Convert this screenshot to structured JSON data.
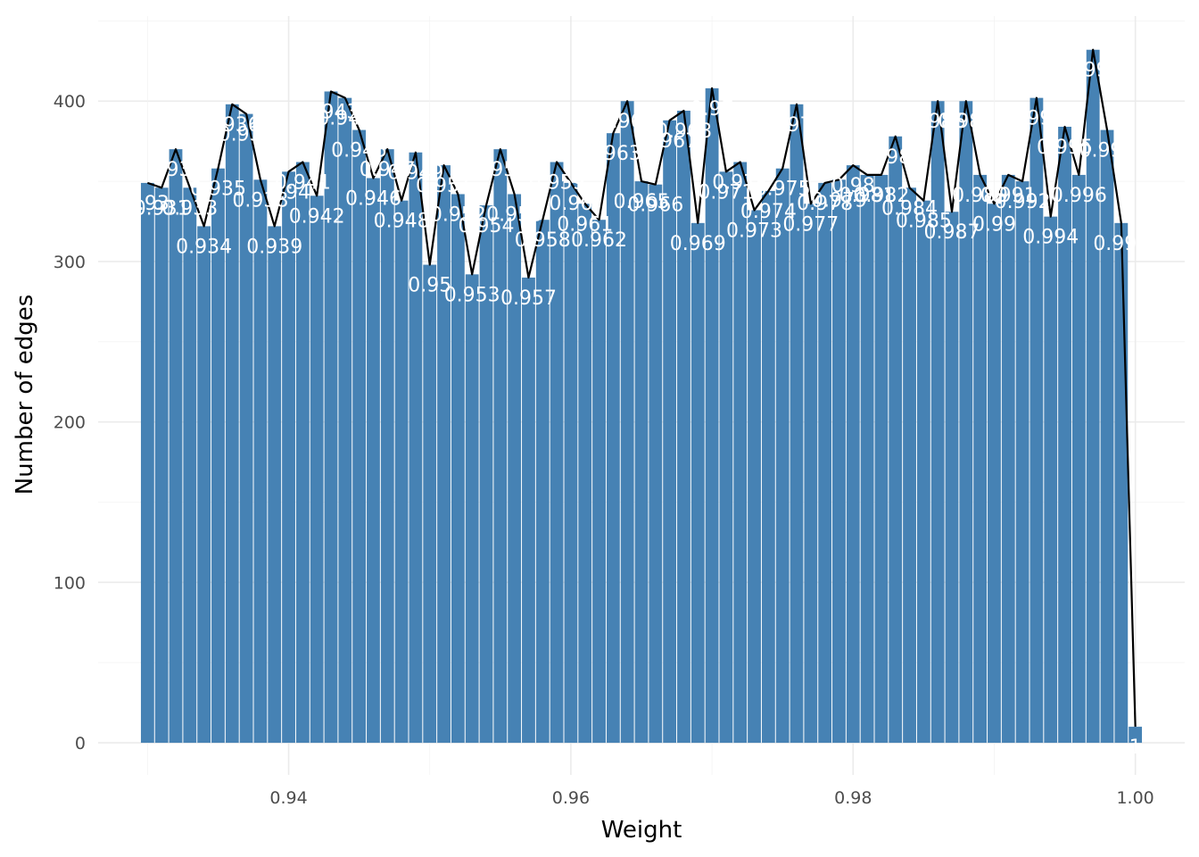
{
  "chart_data": {
    "type": "bar",
    "xlabel": "Weight",
    "ylabel": "Number of edges",
    "xlim": [
      0.9265,
      1.0035
    ],
    "ylim": [
      -20,
      453
    ],
    "x_ticks": [
      0.94,
      0.96,
      0.98,
      1.0
    ],
    "x_tick_labels": [
      "0.94",
      "0.96",
      "0.98",
      "1.00"
    ],
    "y_ticks": [
      0,
      100,
      200,
      300,
      400
    ],
    "y_tick_labels": [
      "0",
      "100",
      "200",
      "300",
      "400"
    ],
    "grid": true,
    "bar_color": "#4682b4",
    "line_color": "#000000",
    "label_color": "#ffffff",
    "x": [
      0.93,
      0.931,
      0.932,
      0.933,
      0.934,
      0.935,
      0.936,
      0.937,
      0.938,
      0.939,
      0.94,
      0.941,
      0.942,
      0.943,
      0.944,
      0.945,
      0.946,
      0.947,
      0.948,
      0.949,
      0.95,
      0.951,
      0.952,
      0.953,
      0.954,
      0.955,
      0.956,
      0.957,
      0.958,
      0.959,
      0.96,
      0.961,
      0.962,
      0.963,
      0.964,
      0.965,
      0.966,
      0.967,
      0.968,
      0.969,
      0.97,
      0.971,
      0.972,
      0.973,
      0.974,
      0.975,
      0.976,
      0.977,
      0.978,
      0.979,
      0.98,
      0.981,
      0.982,
      0.983,
      0.984,
      0.985,
      0.986,
      0.987,
      0.988,
      0.989,
      0.99,
      0.991,
      0.992,
      0.993,
      0.994,
      0.995,
      0.996,
      0.997,
      0.998,
      0.999,
      1.0
    ],
    "values": [
      349,
      346,
      370,
      346,
      322,
      358,
      398,
      392,
      351,
      322,
      356,
      362,
      341,
      406,
      402,
      382,
      352,
      370,
      338,
      368,
      298,
      360,
      342,
      292,
      335,
      370,
      342,
      290,
      326,
      362,
      349,
      336,
      326,
      380,
      400,
      350,
      348,
      388,
      394,
      324,
      408,
      356,
      362,
      332,
      344,
      358,
      398,
      336,
      349,
      351,
      360,
      354,
      354,
      378,
      346,
      338,
      400,
      331,
      400,
      354,
      336,
      354,
      350,
      402,
      328,
      384,
      354,
      432,
      382,
      324,
      10
    ],
    "labels": [
      "0.93",
      "0.931",
      "0.932",
      "0.933",
      "0.934",
      "0.935",
      "0.936",
      "0.937",
      "0.938",
      "0.939",
      "0.94",
      "0.941",
      "0.942",
      "0.943",
      "0.944",
      "0.945",
      "0.946",
      "0.947",
      "0.948",
      "0.949",
      "0.95",
      "0.951",
      "0.952",
      "0.953",
      "0.954",
      "0.955",
      "0.956",
      "0.957",
      "0.958",
      "0.959",
      "0.96",
      "0.961",
      "0.962",
      "0.963",
      "0.964",
      "0.965",
      "0.966",
      "0.967",
      "0.968",
      "0.969",
      "0.97",
      "0.971",
      "0.972",
      "0.973",
      "0.974",
      "0.975",
      "0.976",
      "0.977",
      "0.978",
      "0.979",
      "0.98",
      "0.981",
      "0.982",
      "0.983",
      "0.984",
      "0.985",
      "0.986",
      "0.987",
      "0.988",
      "0.989",
      "0.99",
      "0.991",
      "0.992",
      "0.993",
      "0.994",
      "0.995",
      "0.996",
      "0.997",
      "0.998",
      "0.999",
      "1"
    ]
  }
}
